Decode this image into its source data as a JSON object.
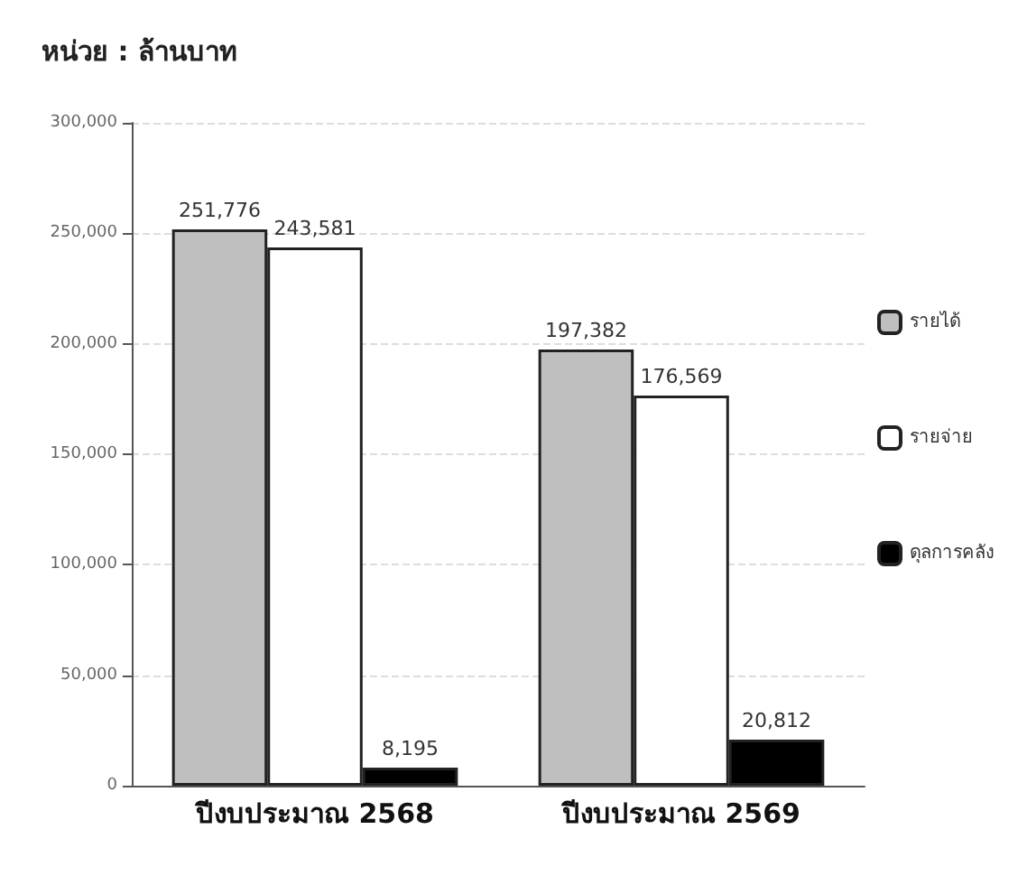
{
  "chart_data": {
    "type": "bar",
    "title": "หน่วย : ล้านบาท",
    "categories": [
      "ปีงบประมาณ 2568",
      "ปีงบประมาณ 2569"
    ],
    "series": [
      {
        "name": "รายได้",
        "color": "#bfbfbf",
        "values": [
          251776,
          197382
        ],
        "value_labels": [
          "251,776",
          "197,382"
        ]
      },
      {
        "name": "รายจ่าย",
        "color": "#ffffff",
        "values": [
          243581,
          176569
        ],
        "value_labels": [
          "243,581",
          "176,569"
        ]
      },
      {
        "name": "ดุลการคลัง",
        "color": "#000000",
        "values": [
          8195,
          20812
        ],
        "value_labels": [
          "8,195",
          "20,812"
        ]
      }
    ],
    "ylim": [
      0,
      300000
    ],
    "yticks": [
      {
        "value": 0,
        "label": "0"
      },
      {
        "value": 50000,
        "label": "50,000"
      },
      {
        "value": 100000,
        "label": "100,000"
      },
      {
        "value": 150000,
        "label": "150,000"
      },
      {
        "value": 200000,
        "label": "200,000"
      },
      {
        "value": 250000,
        "label": "250,000"
      },
      {
        "value": 300000,
        "label": "300,000"
      }
    ],
    "grid": "y",
    "legend": "right"
  }
}
